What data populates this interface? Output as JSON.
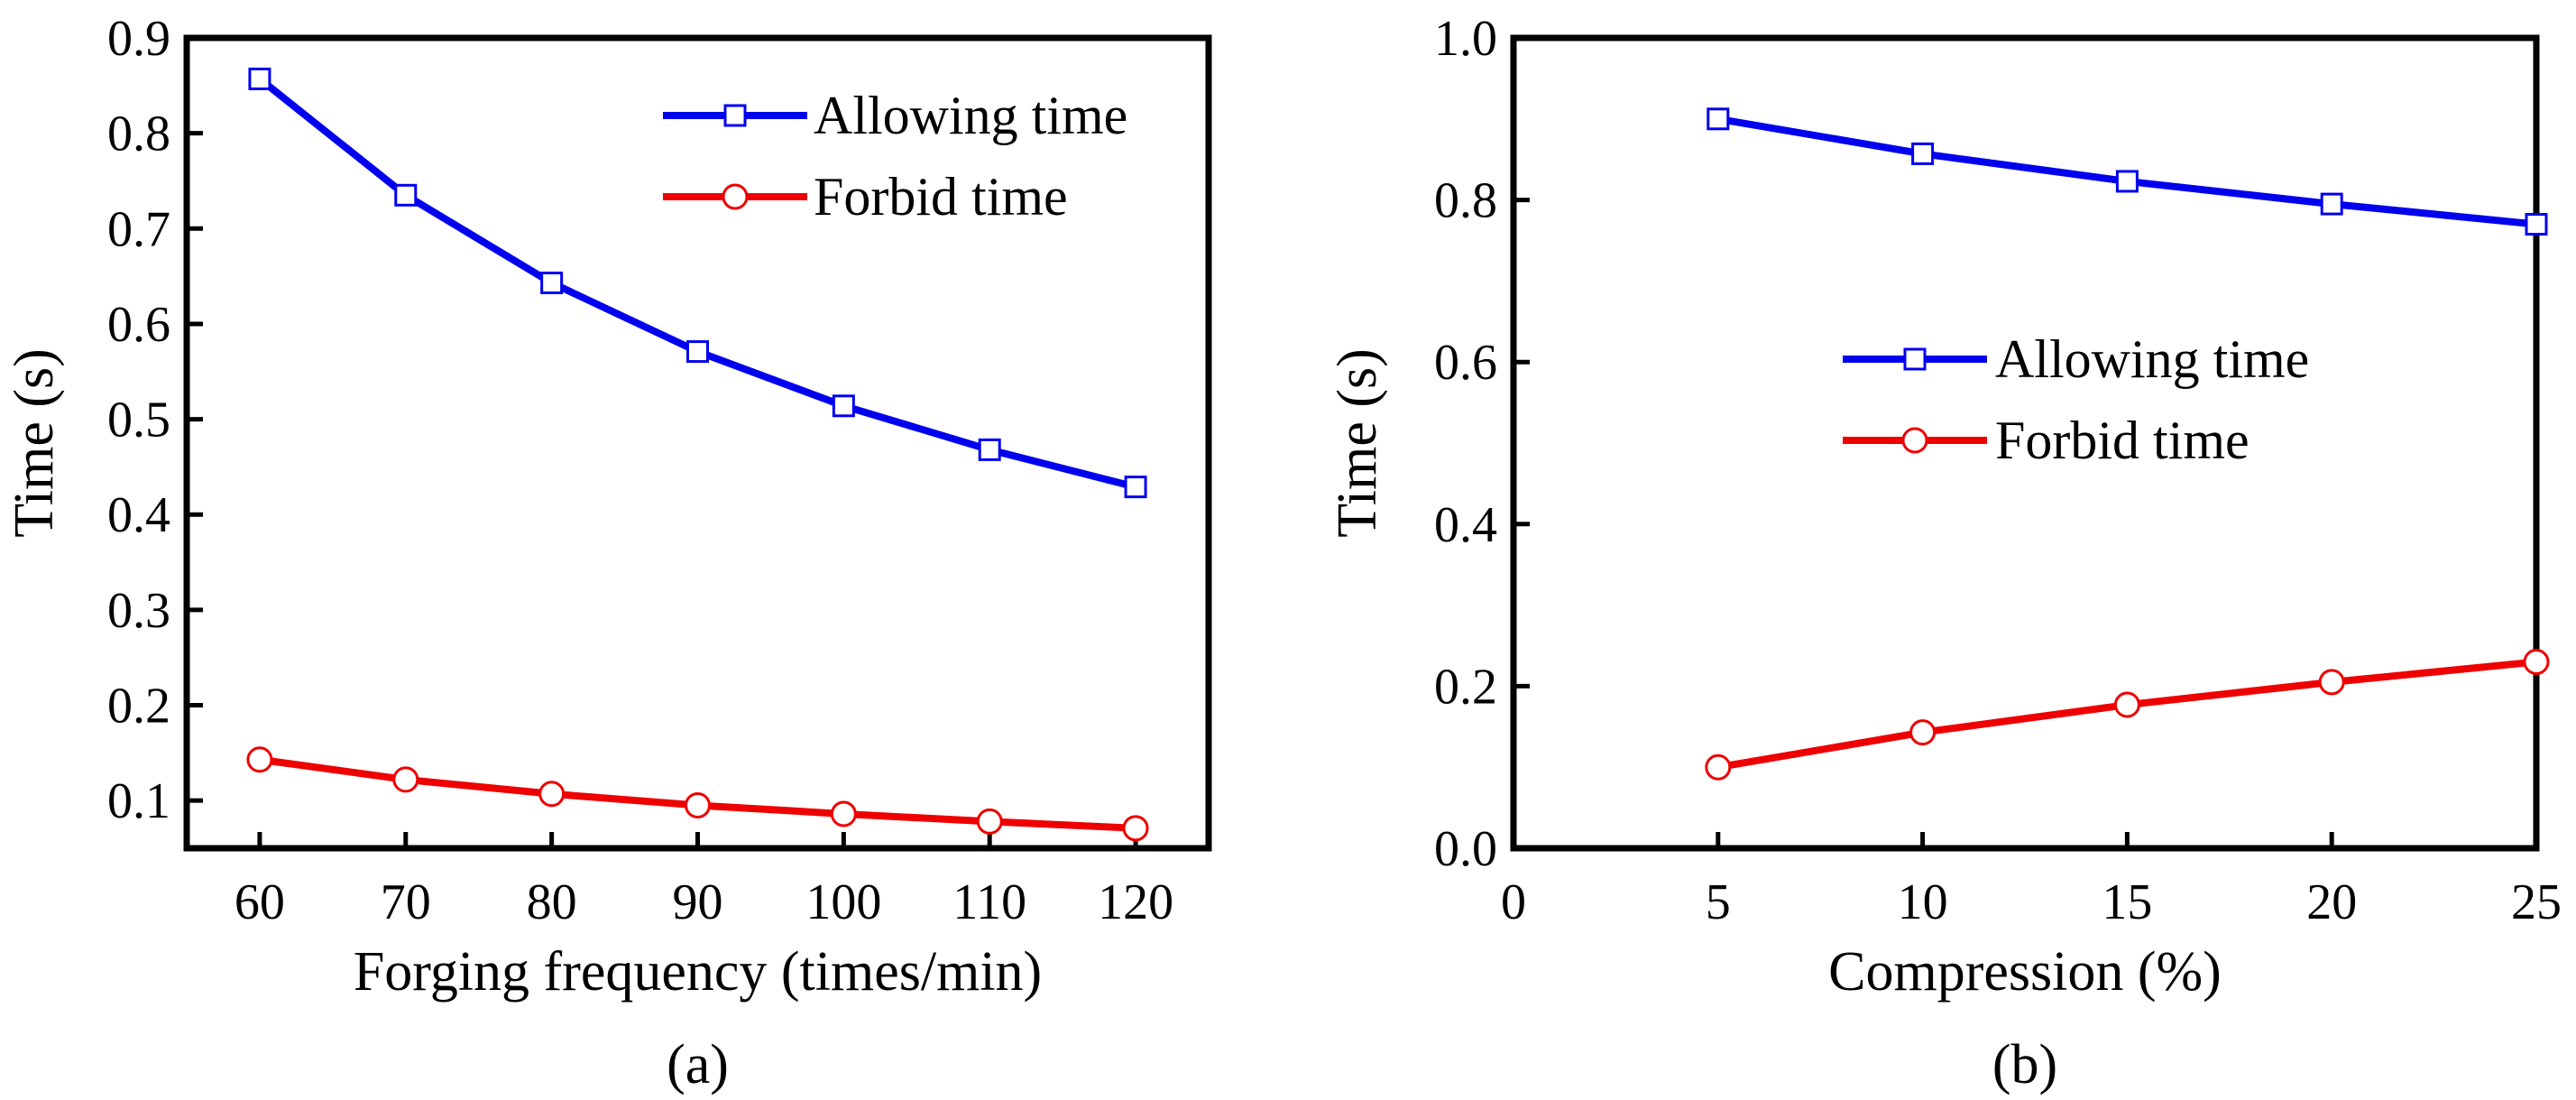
{
  "chart_data": [
    {
      "type": "line",
      "panel_label": "(a)",
      "xlabel": "Forging frequency (times/min)",
      "ylabel": "Time (s)",
      "xlim": [
        55,
        125
      ],
      "ylim": [
        0.05,
        0.9
      ],
      "xticks": [
        60,
        70,
        80,
        90,
        100,
        110,
        120
      ],
      "xtick_labels": [
        "60",
        "70",
        "80",
        "90",
        "100",
        "110",
        "120"
      ],
      "yticks": [
        0.1,
        0.2,
        0.3,
        0.4,
        0.5,
        0.6,
        0.7,
        0.8,
        0.9
      ],
      "ytick_labels": [
        "0.1",
        "0.2",
        "0.3",
        "0.4",
        "0.5",
        "0.6",
        "0.7",
        "0.8",
        "0.9"
      ],
      "x": [
        60,
        70,
        80,
        90,
        100,
        110,
        120
      ],
      "legend_position": "top-right",
      "series": [
        {
          "name": "Allowing time",
          "color": "#0000ee",
          "marker": "square",
          "values": [
            0.857,
            0.735,
            0.643,
            0.571,
            0.514,
            0.468,
            0.429
          ]
        },
        {
          "name": "Forbid time",
          "color": "#ee0000",
          "marker": "circle",
          "values": [
            0.143,
            0.122,
            0.107,
            0.095,
            0.086,
            0.078,
            0.071
          ]
        }
      ]
    },
    {
      "type": "line",
      "panel_label": "(b)",
      "xlabel": "Compression (%)",
      "ylabel": "Time (s)",
      "xlim": [
        0,
        25
      ],
      "ylim": [
        0.0,
        1.0
      ],
      "xticks": [
        0,
        5,
        10,
        15,
        20,
        25
      ],
      "xtick_labels": [
        "0",
        "5",
        "10",
        "15",
        "20",
        "25"
      ],
      "yticks": [
        0.0,
        0.2,
        0.4,
        0.6,
        0.8,
        1.0
      ],
      "ytick_labels": [
        "0.0",
        "0.2",
        "0.4",
        "0.6",
        "0.8",
        "1.0"
      ],
      "x": [
        5,
        10,
        15,
        20,
        25
      ],
      "legend_position": "center",
      "series": [
        {
          "name": "Allowing time",
          "color": "#0000ee",
          "marker": "square",
          "values": [
            0.9,
            0.857,
            0.823,
            0.795,
            0.77
          ]
        },
        {
          "name": "Forbid time",
          "color": "#ee0000",
          "marker": "circle",
          "values": [
            0.1,
            0.143,
            0.177,
            0.205,
            0.23
          ]
        }
      ]
    }
  ]
}
